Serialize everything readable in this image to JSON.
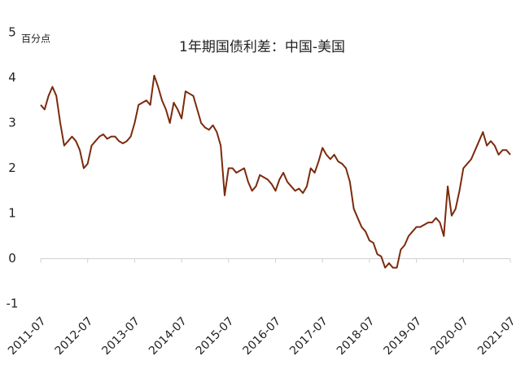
{
  "chart_data": {
    "type": "line",
    "title": "1年期国债利差：中国-美国",
    "y_unit": "百分点",
    "x": [
      "2011-07",
      "2011-08",
      "2011-09",
      "2011-10",
      "2011-11",
      "2011-12",
      "2012-01",
      "2012-02",
      "2012-03",
      "2012-04",
      "2012-05",
      "2012-06",
      "2012-07",
      "2012-08",
      "2012-09",
      "2012-10",
      "2012-11",
      "2012-12",
      "2013-01",
      "2013-02",
      "2013-03",
      "2013-04",
      "2013-05",
      "2013-06",
      "2013-07",
      "2013-08",
      "2013-09",
      "2013-10",
      "2013-11",
      "2013-12",
      "2014-01",
      "2014-02",
      "2014-03",
      "2014-04",
      "2014-05",
      "2014-06",
      "2014-07",
      "2014-08",
      "2014-09",
      "2014-10",
      "2014-11",
      "2014-12",
      "2015-01",
      "2015-02",
      "2015-03",
      "2015-04",
      "2015-05",
      "2015-06",
      "2015-07",
      "2015-08",
      "2015-09",
      "2015-10",
      "2015-11",
      "2015-12",
      "2016-01",
      "2016-02",
      "2016-03",
      "2016-04",
      "2016-05",
      "2016-06",
      "2016-07",
      "2016-08",
      "2016-09",
      "2016-10",
      "2016-11",
      "2016-12",
      "2017-01",
      "2017-02",
      "2017-03",
      "2017-04",
      "2017-05",
      "2017-06",
      "2017-07",
      "2017-08",
      "2017-09",
      "2017-10",
      "2017-11",
      "2017-12",
      "2018-01",
      "2018-02",
      "2018-03",
      "2018-04",
      "2018-05",
      "2018-06",
      "2018-07",
      "2018-08",
      "2018-09",
      "2018-10",
      "2018-11",
      "2018-12",
      "2019-01",
      "2019-02",
      "2019-03",
      "2019-04",
      "2019-05",
      "2019-06",
      "2019-07",
      "2019-08",
      "2019-09",
      "2019-10",
      "2019-11",
      "2019-12",
      "2020-01",
      "2020-02",
      "2020-03",
      "2020-04",
      "2020-05",
      "2020-06",
      "2020-07",
      "2020-08",
      "2020-09",
      "2020-10",
      "2020-11",
      "2020-12",
      "2021-01",
      "2021-02",
      "2021-03",
      "2021-04",
      "2021-05",
      "2021-06",
      "2021-07"
    ],
    "series": [
      {
        "name": "利差",
        "color": "#7b2a0c",
        "values": [
          3.4,
          3.3,
          3.6,
          3.8,
          3.6,
          3.0,
          2.5,
          2.6,
          2.7,
          2.6,
          2.4,
          2.0,
          2.1,
          2.5,
          2.6,
          2.7,
          2.75,
          2.65,
          2.7,
          2.7,
          2.6,
          2.55,
          2.6,
          2.7,
          3.0,
          3.4,
          3.45,
          3.5,
          3.4,
          4.05,
          3.8,
          3.5,
          3.3,
          3.0,
          3.45,
          3.3,
          3.1,
          3.7,
          3.65,
          3.6,
          3.3,
          3.0,
          2.9,
          2.85,
          2.95,
          2.8,
          2.5,
          1.4,
          2.0,
          2.0,
          1.9,
          1.95,
          2.0,
          1.7,
          1.5,
          1.6,
          1.85,
          1.8,
          1.75,
          1.65,
          1.5,
          1.75,
          1.9,
          1.7,
          1.6,
          1.5,
          1.55,
          1.45,
          1.6,
          2.0,
          1.9,
          2.15,
          2.45,
          2.3,
          2.2,
          2.3,
          2.15,
          2.1,
          2.0,
          1.7,
          1.1,
          0.9,
          0.7,
          0.6,
          0.4,
          0.35,
          0.1,
          0.05,
          -0.2,
          -0.1,
          -0.2,
          -0.2,
          0.2,
          0.3,
          0.5,
          0.6,
          0.7,
          0.7,
          0.75,
          0.8,
          0.8,
          0.9,
          0.8,
          0.5,
          1.6,
          0.95,
          1.1,
          1.5,
          2.0,
          2.1,
          2.2,
          2.4,
          2.6,
          2.8,
          2.5,
          2.6,
          2.5,
          2.3,
          2.4,
          2.4,
          2.3
        ]
      }
    ],
    "xlim": [
      "2011-07",
      "2021-07"
    ],
    "xticks": [
      "2011-07",
      "2012-07",
      "2013-07",
      "2014-07",
      "2015-07",
      "2016-07",
      "2017-07",
      "2018-07",
      "2019-07",
      "2020-07",
      "2021-07"
    ],
    "ylim": [
      -1,
      5
    ],
    "yticks": [
      5,
      4,
      3,
      2,
      1,
      0,
      -1
    ]
  }
}
